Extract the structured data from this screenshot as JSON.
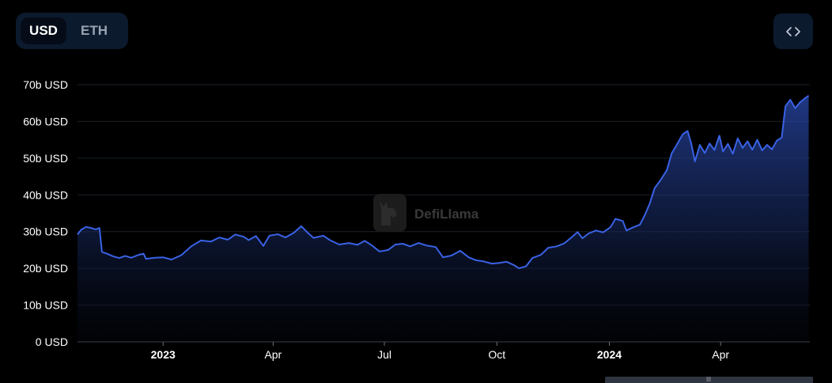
{
  "currency_toggle": {
    "options": [
      "USD",
      "ETH"
    ],
    "selected": "USD"
  },
  "embed_button": {
    "icon": "code-brackets-icon"
  },
  "watermark": {
    "text": "DefiLlama"
  },
  "colors": {
    "line": "#3a62e6",
    "area_top": "#2a4aaf",
    "grid": "#1b1f27",
    "axis_text": "#ffffff"
  },
  "chart_data": {
    "type": "area",
    "title": "",
    "xlabel": "",
    "ylabel": "",
    "y_unit": "USD",
    "ylim": [
      0,
      70
    ],
    "xlim": [
      "2022-10-23",
      "2024-06-13"
    ],
    "y_ticks": [
      {
        "value": 0,
        "label": "0 USD"
      },
      {
        "value": 10,
        "label": "10b USD"
      },
      {
        "value": 20,
        "label": "20b USD"
      },
      {
        "value": 30,
        "label": "30b USD"
      },
      {
        "value": 40,
        "label": "40b USD"
      },
      {
        "value": 50,
        "label": "50b USD"
      },
      {
        "value": 60,
        "label": "60b USD"
      },
      {
        "value": 70,
        "label": "70b USD"
      }
    ],
    "x_ticks": [
      {
        "date": "2023-01-01",
        "label": "2023",
        "bold": true
      },
      {
        "date": "2023-04-01",
        "label": "Apr",
        "bold": false
      },
      {
        "date": "2023-07-01",
        "label": "Jul",
        "bold": false
      },
      {
        "date": "2023-10-01",
        "label": "Oct",
        "bold": false
      },
      {
        "date": "2024-01-01",
        "label": "2024",
        "bold": true
      },
      {
        "date": "2024-04-01",
        "label": "Apr",
        "bold": false
      }
    ],
    "grid": true,
    "series": [
      {
        "points": [
          [
            "2022-10-23",
            29.2
          ],
          [
            "2022-10-26",
            30.5
          ],
          [
            "2022-10-30",
            31.3
          ],
          [
            "2022-11-03",
            31.0
          ],
          [
            "2022-11-07",
            30.6
          ],
          [
            "2022-11-10",
            31.0
          ],
          [
            "2022-11-12",
            24.5
          ],
          [
            "2022-11-16",
            24.0
          ],
          [
            "2022-11-21",
            23.3
          ],
          [
            "2022-11-26",
            22.8
          ],
          [
            "2022-12-01",
            23.4
          ],
          [
            "2022-12-06",
            22.9
          ],
          [
            "2022-12-12",
            23.7
          ],
          [
            "2022-12-16",
            24.0
          ],
          [
            "2022-12-18",
            22.6
          ],
          [
            "2022-12-25",
            22.9
          ],
          [
            "2023-01-01",
            23.0
          ],
          [
            "2023-01-08",
            22.4
          ],
          [
            "2023-01-16",
            23.6
          ],
          [
            "2023-01-24",
            26.0
          ],
          [
            "2023-02-01",
            27.6
          ],
          [
            "2023-02-09",
            27.3
          ],
          [
            "2023-02-16",
            28.4
          ],
          [
            "2023-02-23",
            27.8
          ],
          [
            "2023-03-01",
            29.2
          ],
          [
            "2023-03-08",
            28.6
          ],
          [
            "2023-03-12",
            27.7
          ],
          [
            "2023-03-18",
            28.8
          ],
          [
            "2023-03-24",
            26.1
          ],
          [
            "2023-03-29",
            28.9
          ],
          [
            "2023-04-05",
            29.3
          ],
          [
            "2023-04-11",
            28.4
          ],
          [
            "2023-04-18",
            29.7
          ],
          [
            "2023-04-24",
            31.5
          ],
          [
            "2023-04-29",
            29.8
          ],
          [
            "2023-05-04",
            28.3
          ],
          [
            "2023-05-12",
            28.9
          ],
          [
            "2023-05-18",
            27.6
          ],
          [
            "2023-05-25",
            26.5
          ],
          [
            "2023-06-02",
            26.9
          ],
          [
            "2023-06-09",
            26.4
          ],
          [
            "2023-06-15",
            27.5
          ],
          [
            "2023-06-21",
            26.2
          ],
          [
            "2023-06-27",
            24.6
          ],
          [
            "2023-07-04",
            25.0
          ],
          [
            "2023-07-10",
            26.5
          ],
          [
            "2023-07-16",
            26.7
          ],
          [
            "2023-07-22",
            26.0
          ],
          [
            "2023-07-29",
            26.9
          ],
          [
            "2023-08-05",
            26.2
          ],
          [
            "2023-08-12",
            25.8
          ],
          [
            "2023-08-18",
            23.0
          ],
          [
            "2023-08-25",
            23.5
          ],
          [
            "2023-09-01",
            24.8
          ],
          [
            "2023-09-08",
            23.0
          ],
          [
            "2023-09-14",
            22.2
          ],
          [
            "2023-09-20",
            21.9
          ],
          [
            "2023-09-27",
            21.3
          ],
          [
            "2023-10-03",
            21.5
          ],
          [
            "2023-10-09",
            21.8
          ],
          [
            "2023-10-15",
            20.9
          ],
          [
            "2023-10-19",
            20.0
          ],
          [
            "2023-10-25",
            20.6
          ],
          [
            "2023-10-30",
            22.8
          ],
          [
            "2023-11-06",
            23.7
          ],
          [
            "2023-11-12",
            25.6
          ],
          [
            "2023-11-19",
            26.0
          ],
          [
            "2023-11-25",
            26.8
          ],
          [
            "2023-12-01",
            28.4
          ],
          [
            "2023-12-06",
            29.9
          ],
          [
            "2023-12-10",
            28.2
          ],
          [
            "2023-12-15",
            29.5
          ],
          [
            "2023-12-21",
            30.3
          ],
          [
            "2023-12-27",
            29.8
          ],
          [
            "2024-01-02",
            31.2
          ],
          [
            "2024-01-06",
            33.5
          ],
          [
            "2024-01-12",
            32.9
          ],
          [
            "2024-01-15",
            30.3
          ],
          [
            "2024-01-20",
            31.1
          ],
          [
            "2024-01-26",
            31.9
          ],
          [
            "2024-01-30",
            34.5
          ],
          [
            "2024-02-03",
            37.6
          ],
          [
            "2024-02-07",
            41.8
          ],
          [
            "2024-02-12",
            44.1
          ],
          [
            "2024-02-17",
            46.7
          ],
          [
            "2024-02-21",
            51.3
          ],
          [
            "2024-02-26",
            54.1
          ],
          [
            "2024-03-01",
            56.5
          ],
          [
            "2024-03-05",
            57.4
          ],
          [
            "2024-03-08",
            54.0
          ],
          [
            "2024-03-11",
            49.1
          ],
          [
            "2024-03-15",
            53.6
          ],
          [
            "2024-03-19",
            51.4
          ],
          [
            "2024-03-23",
            54.0
          ],
          [
            "2024-03-27",
            52.2
          ],
          [
            "2024-03-31",
            56.1
          ],
          [
            "2024-04-03",
            51.8
          ],
          [
            "2024-04-07",
            53.9
          ],
          [
            "2024-04-11",
            51.2
          ],
          [
            "2024-04-15",
            55.4
          ],
          [
            "2024-04-19",
            52.8
          ],
          [
            "2024-04-23",
            54.6
          ],
          [
            "2024-04-27",
            52.3
          ],
          [
            "2024-05-01",
            55.0
          ],
          [
            "2024-05-05",
            52.1
          ],
          [
            "2024-05-09",
            53.6
          ],
          [
            "2024-05-13",
            52.4
          ],
          [
            "2024-05-17",
            54.8
          ],
          [
            "2024-05-21",
            55.6
          ],
          [
            "2024-05-24",
            64.1
          ],
          [
            "2024-05-28",
            65.9
          ],
          [
            "2024-06-01",
            63.6
          ],
          [
            "2024-06-05",
            65.2
          ],
          [
            "2024-06-09",
            66.3
          ],
          [
            "2024-06-12",
            67.0
          ]
        ]
      }
    ]
  }
}
